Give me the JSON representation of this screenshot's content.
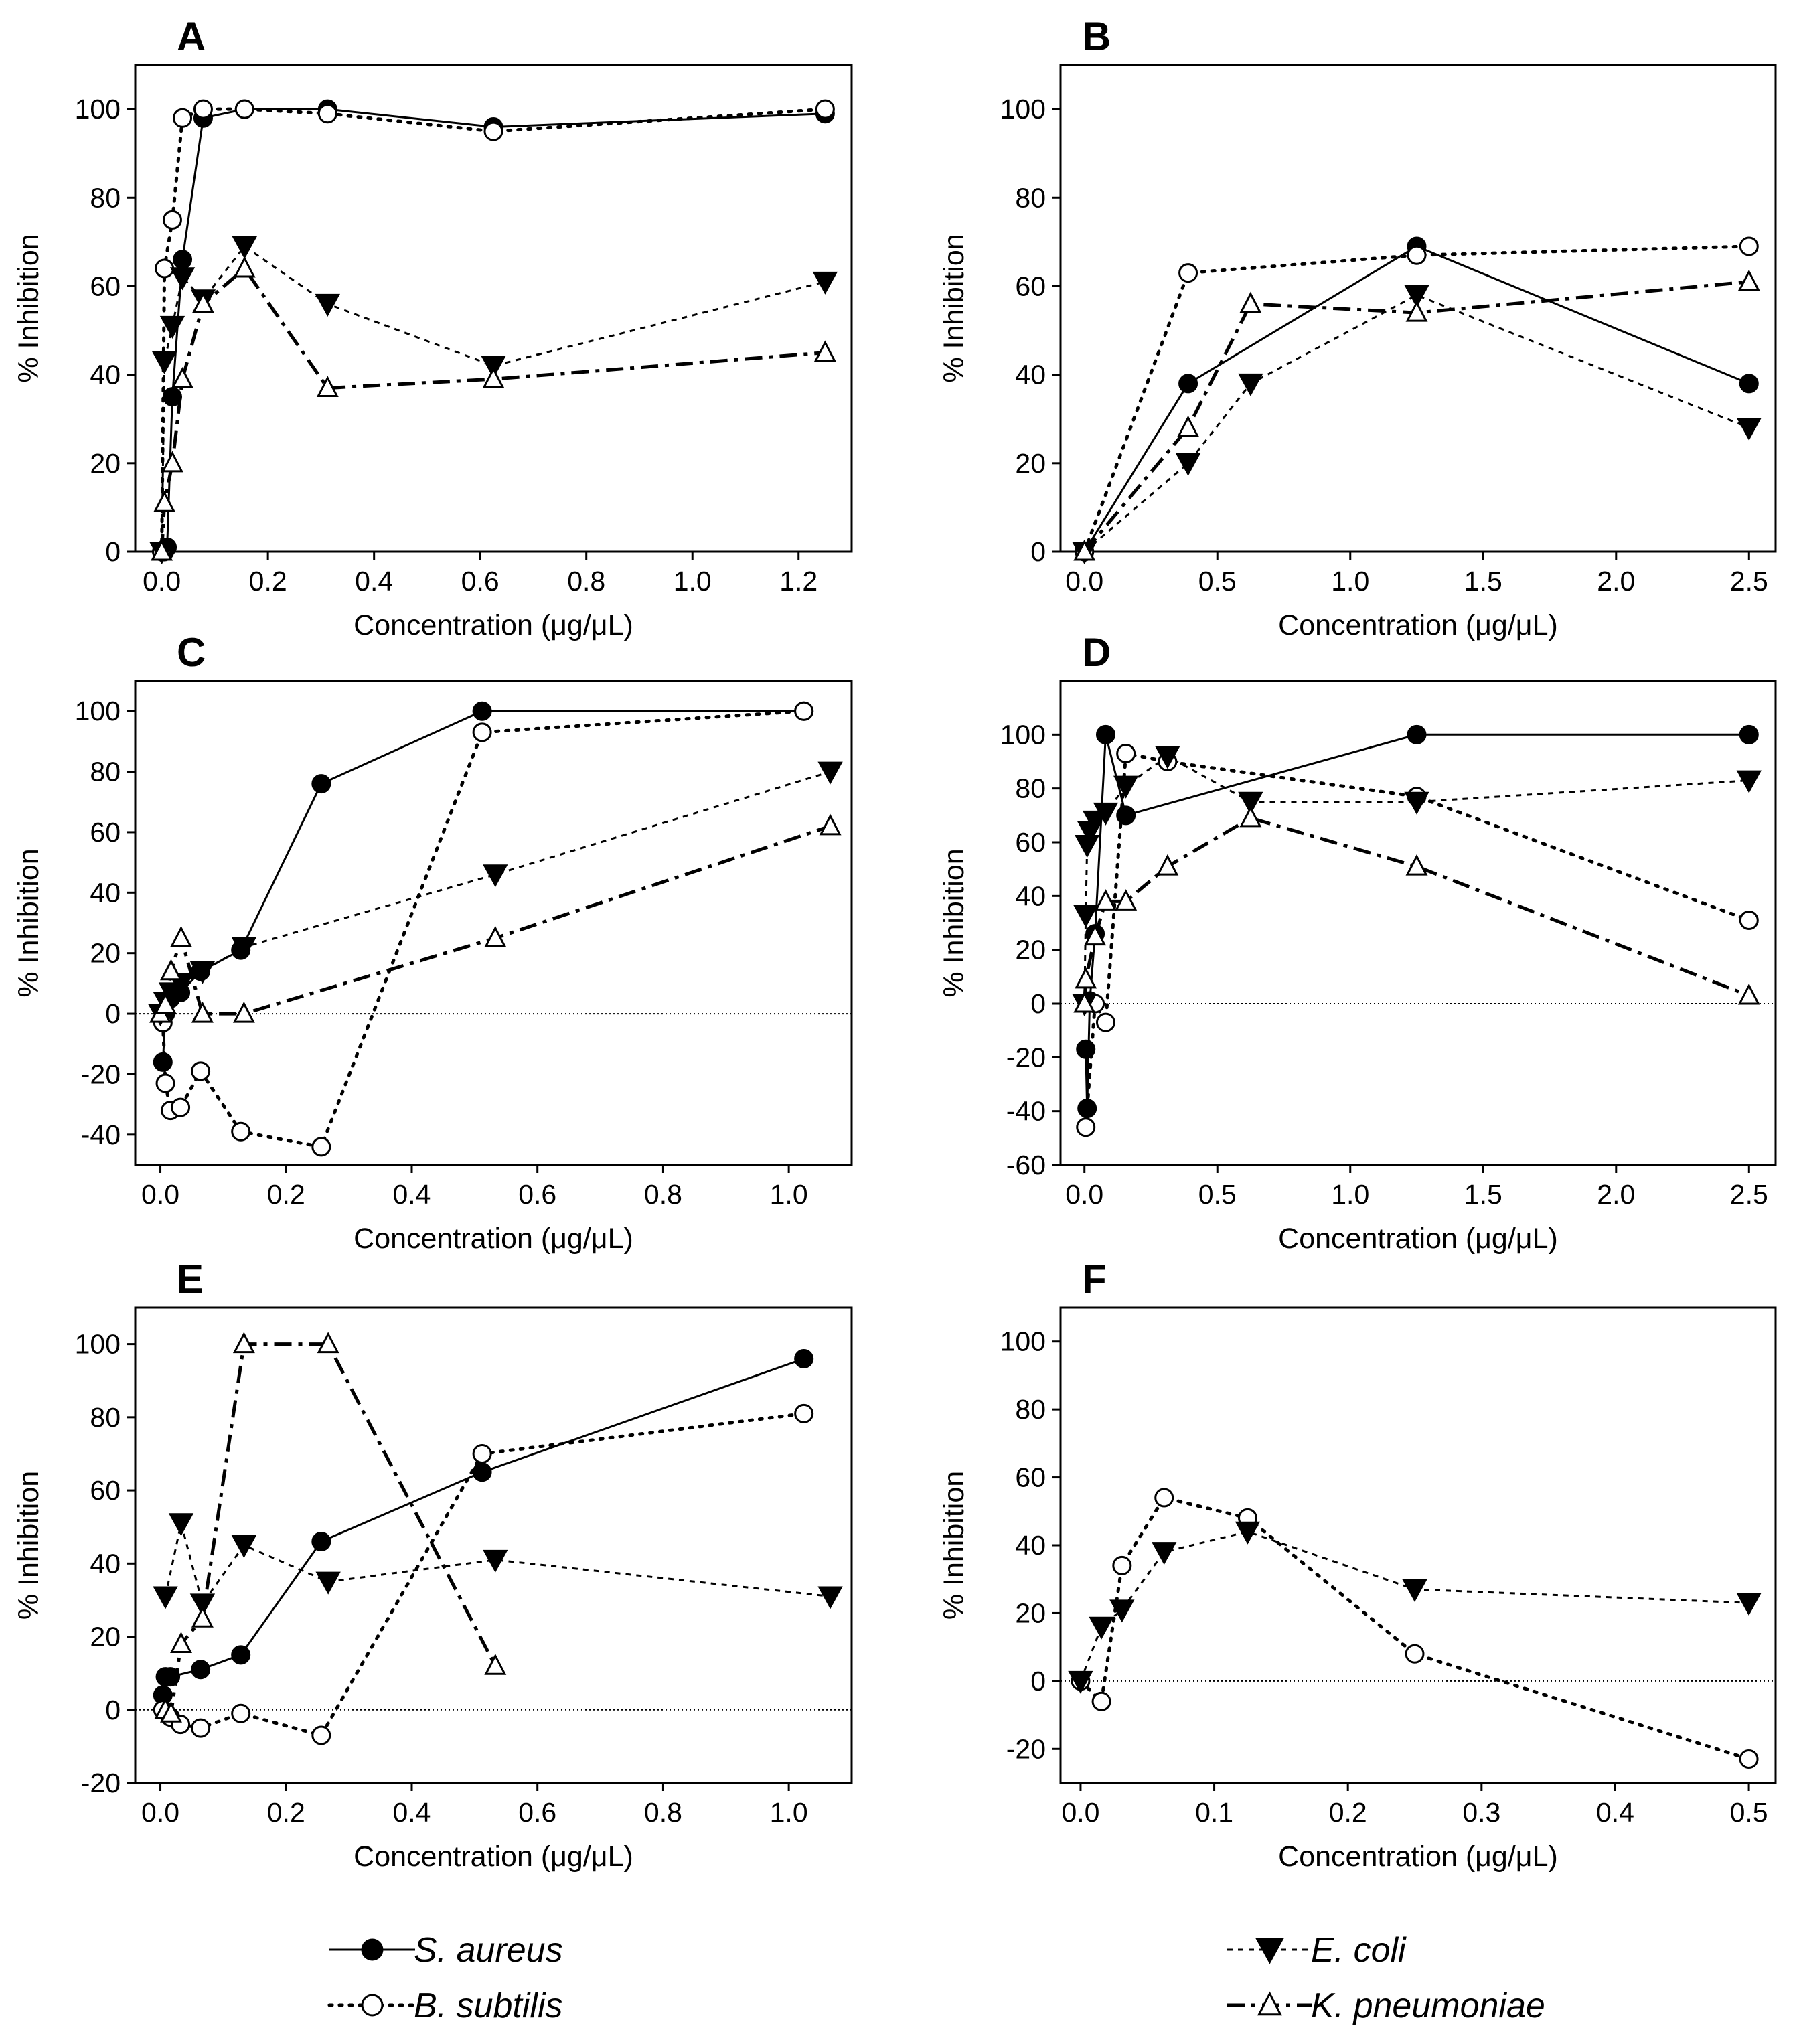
{
  "figure": {
    "x_axis_label": "Concentration (μg/μL)",
    "y_axis_label": "% Inhibition"
  },
  "legend": {
    "items": [
      {
        "key": "sa",
        "label": "S. aureus"
      },
      {
        "key": "bs",
        "label": "B. subtilis"
      },
      {
        "key": "ec",
        "label": "E. coli"
      },
      {
        "key": "kp",
        "label": "K. pneumoniae"
      }
    ]
  },
  "chart_data": [
    {
      "type": "line",
      "title": "A",
      "xlabel": "Concentration (μg/μL)",
      "ylabel": "% Inhibition",
      "xlim": [
        -0.05,
        1.3
      ],
      "ylim": [
        0,
        110
      ],
      "xticks": [
        0.0,
        0.2,
        0.4,
        0.6,
        0.8,
        1.0,
        1.2
      ],
      "xtick_labels": [
        "0.0",
        "0.2",
        "0.4",
        "0.6",
        "0.8",
        "1.0",
        "1.2"
      ],
      "yticks": [
        0,
        20,
        40,
        60,
        80,
        100
      ],
      "ytick_labels": [
        "0",
        "20",
        "40",
        "60",
        "80",
        "100"
      ],
      "zero_line": false,
      "series": [
        {
          "key": "sa",
          "name": "S. aureus",
          "points": [
            [
              0,
              0
            ],
            [
              0.005,
              0
            ],
            [
              0.01,
              1
            ],
            [
              0.02,
              35
            ],
            [
              0.039,
              66
            ],
            [
              0.078,
              98
            ],
            [
              0.156,
              100
            ],
            [
              0.3125,
              100
            ],
            [
              0.625,
              96
            ],
            [
              1.25,
              99
            ]
          ]
        },
        {
          "key": "bs",
          "name": "B. subtilis",
          "points": [
            [
              0,
              0
            ],
            [
              0.005,
              64
            ],
            [
              0.02,
              75
            ],
            [
              0.039,
              98
            ],
            [
              0.078,
              100
            ],
            [
              0.156,
              100
            ],
            [
              0.3125,
              99
            ],
            [
              0.625,
              95
            ],
            [
              1.25,
              100
            ]
          ]
        },
        {
          "key": "ec",
          "name": "E. coli",
          "points": [
            [
              0,
              0
            ],
            [
              0.005,
              43
            ],
            [
              0.02,
              51
            ],
            [
              0.039,
              62
            ],
            [
              0.078,
              57
            ],
            [
              0.156,
              69
            ],
            [
              0.3125,
              56
            ],
            [
              0.625,
              42
            ],
            [
              1.25,
              61
            ]
          ]
        },
        {
          "key": "kp",
          "name": "K. pneumoniae",
          "points": [
            [
              0,
              0
            ],
            [
              0.005,
              11
            ],
            [
              0.02,
              20
            ],
            [
              0.039,
              39
            ],
            [
              0.078,
              56
            ],
            [
              0.156,
              64
            ],
            [
              0.3125,
              37
            ],
            [
              0.625,
              39
            ],
            [
              1.25,
              45
            ]
          ]
        }
      ]
    },
    {
      "type": "line",
      "title": "B",
      "xlabel": "Concentration (μg/μL)",
      "ylabel": "% Inhibition",
      "xlim": [
        -0.09,
        2.6
      ],
      "ylim": [
        0,
        110
      ],
      "xticks": [
        0.0,
        0.5,
        1.0,
        1.5,
        2.0,
        2.5
      ],
      "xtick_labels": [
        "0.0",
        "0.5",
        "1.0",
        "1.5",
        "2.0",
        "2.5"
      ],
      "yticks": [
        0,
        20,
        40,
        60,
        80,
        100
      ],
      "ytick_labels": [
        "0",
        "20",
        "40",
        "60",
        "80",
        "100"
      ],
      "zero_line": false,
      "series": [
        {
          "key": "sa",
          "name": "S. aureus",
          "points": [
            [
              0,
              0
            ],
            [
              0.39,
              38
            ],
            [
              1.25,
              69
            ],
            [
              2.5,
              38
            ]
          ]
        },
        {
          "key": "bs",
          "name": "B. subtilis",
          "points": [
            [
              0,
              0
            ],
            [
              0.39,
              63
            ],
            [
              1.25,
              67
            ],
            [
              2.5,
              69
            ]
          ]
        },
        {
          "key": "ec",
          "name": "E. coli",
          "points": [
            [
              0,
              0
            ],
            [
              0.39,
              20
            ],
            [
              0.625,
              38
            ],
            [
              1.25,
              58
            ],
            [
              2.5,
              28
            ]
          ]
        },
        {
          "key": "kp",
          "name": "K. pneumoniae",
          "points": [
            [
              0,
              0
            ],
            [
              0.39,
              28
            ],
            [
              0.625,
              56
            ],
            [
              1.25,
              54
            ],
            [
              2.5,
              61
            ]
          ]
        }
      ]
    },
    {
      "type": "line",
      "title": "C",
      "xlabel": "Concentration (μg/μL)",
      "ylabel": "% Inhibition",
      "xlim": [
        -0.04,
        1.1
      ],
      "ylim": [
        -50,
        110
      ],
      "xticks": [
        0.0,
        0.2,
        0.4,
        0.6,
        0.8,
        1.0
      ],
      "xtick_labels": [
        "0.0",
        "0.2",
        "0.4",
        "0.6",
        "0.8",
        "1.0"
      ],
      "yticks": [
        -40,
        -20,
        0,
        20,
        40,
        60,
        80,
        100
      ],
      "ytick_labels": [
        "-40",
        "-20",
        "0",
        "20",
        "40",
        "60",
        "80",
        "100"
      ],
      "zero_line": true,
      "series": [
        {
          "key": "sa",
          "name": "S. aureus",
          "points": [
            [
              0.004,
              -16
            ],
            [
              0.008,
              0
            ],
            [
              0.016,
              5
            ],
            [
              0.032,
              7
            ],
            [
              0.064,
              14
            ],
            [
              0.128,
              21
            ],
            [
              0.256,
              76
            ],
            [
              0.512,
              100
            ],
            [
              1.024,
              100
            ]
          ]
        },
        {
          "key": "bs",
          "name": "B. subtilis",
          "points": [
            [
              0.004,
              -3
            ],
            [
              0.008,
              -23
            ],
            [
              0.016,
              -32
            ],
            [
              0.032,
              -31
            ],
            [
              0.064,
              -19
            ],
            [
              0.128,
              -39
            ],
            [
              0.256,
              -44
            ],
            [
              0.512,
              93
            ],
            [
              1.024,
              100
            ]
          ]
        },
        {
          "key": "ec",
          "name": "E. coli",
          "points": [
            [
              0,
              0
            ],
            [
              0.008,
              4
            ],
            [
              0.017,
              7
            ],
            [
              0.033,
              10
            ],
            [
              0.067,
              14
            ],
            [
              0.133,
              22
            ],
            [
              0.533,
              46
            ],
            [
              1.066,
              80
            ]
          ]
        },
        {
          "key": "kp",
          "name": "K. pneumoniae",
          "points": [
            [
              0,
              0
            ],
            [
              0.008,
              3
            ],
            [
              0.017,
              14
            ],
            [
              0.033,
              25
            ],
            [
              0.067,
              0
            ],
            [
              0.133,
              0
            ],
            [
              0.533,
              25
            ],
            [
              1.066,
              62
            ]
          ]
        }
      ]
    },
    {
      "type": "line",
      "title": "D",
      "xlabel": "Concentration (μg/μL)",
      "ylabel": "% Inhibition",
      "xlim": [
        -0.09,
        2.6
      ],
      "ylim": [
        -60,
        120
      ],
      "xticks": [
        0.0,
        0.5,
        1.0,
        1.5,
        2.0,
        2.5
      ],
      "xtick_labels": [
        "0.0",
        "0.5",
        "1.0",
        "1.5",
        "2.0",
        "2.5"
      ],
      "yticks": [
        -60,
        -40,
        -20,
        0,
        20,
        40,
        60,
        80,
        100
      ],
      "ytick_labels": [
        "-60",
        "-40",
        "-20",
        "0",
        "20",
        "40",
        "60",
        "80",
        "100"
      ],
      "zero_line": true,
      "series": [
        {
          "key": "sa",
          "name": "S. aureus",
          "points": [
            [
              0.005,
              -17
            ],
            [
              0.01,
              -39
            ],
            [
              0.02,
              1
            ],
            [
              0.04,
              26
            ],
            [
              0.08,
              100
            ],
            [
              0.156,
              70
            ],
            [
              1.25,
              100
            ],
            [
              2.5,
              100
            ]
          ]
        },
        {
          "key": "bs",
          "name": "B. subtilis",
          "points": [
            [
              0.005,
              -46
            ],
            [
              0.04,
              0
            ],
            [
              0.08,
              -7
            ],
            [
              0.156,
              93
            ],
            [
              0.3125,
              90
            ],
            [
              1.25,
              77
            ],
            [
              2.5,
              31
            ]
          ]
        },
        {
          "key": "ec",
          "name": "E. coli",
          "points": [
            [
              0,
              0
            ],
            [
              0.005,
              33
            ],
            [
              0.01,
              59
            ],
            [
              0.02,
              64
            ],
            [
              0.04,
              68
            ],
            [
              0.08,
              71
            ],
            [
              0.156,
              81
            ],
            [
              0.3125,
              92
            ],
            [
              0.625,
              75
            ],
            [
              1.25,
              75
            ],
            [
              2.5,
              83
            ]
          ]
        },
        {
          "key": "kp",
          "name": "K. pneumoniae",
          "points": [
            [
              0,
              0
            ],
            [
              0.005,
              9
            ],
            [
              0.04,
              25
            ],
            [
              0.08,
              38
            ],
            [
              0.156,
              38
            ],
            [
              0.3125,
              51
            ],
            [
              0.625,
              69
            ],
            [
              1.25,
              51
            ],
            [
              2.5,
              3
            ]
          ]
        }
      ]
    },
    {
      "type": "line",
      "title": "E",
      "xlabel": "Concentration (μg/μL)",
      "ylabel": "% Inhibition",
      "xlim": [
        -0.04,
        1.1
      ],
      "ylim": [
        -20,
        110
      ],
      "xticks": [
        0.0,
        0.2,
        0.4,
        0.6,
        0.8,
        1.0
      ],
      "xtick_labels": [
        "0.0",
        "0.2",
        "0.4",
        "0.6",
        "0.8",
        "1.0"
      ],
      "yticks": [
        -20,
        0,
        20,
        40,
        60,
        80,
        100
      ],
      "ytick_labels": [
        "-20",
        "0",
        "20",
        "40",
        "60",
        "80",
        "100"
      ],
      "zero_line": true,
      "series": [
        {
          "key": "sa",
          "name": "S. aureus",
          "points": [
            [
              0.004,
              4
            ],
            [
              0.008,
              9
            ],
            [
              0.016,
              9
            ],
            [
              0.064,
              11
            ],
            [
              0.128,
              15
            ],
            [
              0.256,
              46
            ],
            [
              0.512,
              65
            ],
            [
              1.024,
              96
            ]
          ]
        },
        {
          "key": "bs",
          "name": "B. subtilis",
          "points": [
            [
              0.004,
              0
            ],
            [
              0.016,
              -2
            ],
            [
              0.032,
              -4
            ],
            [
              0.064,
              -5
            ],
            [
              0.128,
              -1
            ],
            [
              0.256,
              -7
            ],
            [
              0.512,
              70
            ],
            [
              1.024,
              81
            ]
          ]
        },
        {
          "key": "ec",
          "name": "E. coli",
          "points": [
            [
              0.008,
              31
            ],
            [
              0.033,
              51
            ],
            [
              0.067,
              29
            ],
            [
              0.133,
              45
            ],
            [
              0.267,
              35
            ],
            [
              0.533,
              41
            ],
            [
              1.066,
              31
            ]
          ]
        },
        {
          "key": "kp",
          "name": "K. pneumoniae",
          "points": [
            [
              0.008,
              0
            ],
            [
              0.017,
              -1
            ],
            [
              0.033,
              18
            ],
            [
              0.067,
              25
            ],
            [
              0.133,
              100
            ],
            [
              0.267,
              100
            ],
            [
              0.533,
              12
            ]
          ]
        }
      ]
    },
    {
      "type": "line",
      "title": "F",
      "xlabel": "Concentration (μg/μL)",
      "ylabel": "% Inhibition",
      "xlim": [
        -0.015,
        0.52
      ],
      "ylim": [
        -30,
        110
      ],
      "xticks": [
        0.0,
        0.1,
        0.2,
        0.3,
        0.4,
        0.5
      ],
      "xtick_labels": [
        "0.0",
        "0.1",
        "0.2",
        "0.3",
        "0.4",
        "0.5"
      ],
      "yticks": [
        -20,
        0,
        20,
        40,
        60,
        80,
        100
      ],
      "ytick_labels": [
        "-20",
        "0",
        "20",
        "40",
        "60",
        "80",
        "100"
      ],
      "zero_line": true,
      "series": [
        {
          "key": "bs",
          "name": "B. subtilis",
          "points": [
            [
              0,
              0
            ],
            [
              0.0156,
              -6
            ],
            [
              0.031,
              34
            ],
            [
              0.0625,
              54
            ],
            [
              0.125,
              48
            ],
            [
              0.25,
              8
            ],
            [
              0.5,
              -23
            ]
          ]
        },
        {
          "key": "ec",
          "name": "E. coli",
          "points": [
            [
              0,
              0
            ],
            [
              0.0156,
              16
            ],
            [
              0.031,
              21
            ],
            [
              0.0625,
              38
            ],
            [
              0.125,
              44
            ],
            [
              0.25,
              27
            ],
            [
              0.5,
              23
            ]
          ]
        }
      ]
    }
  ]
}
